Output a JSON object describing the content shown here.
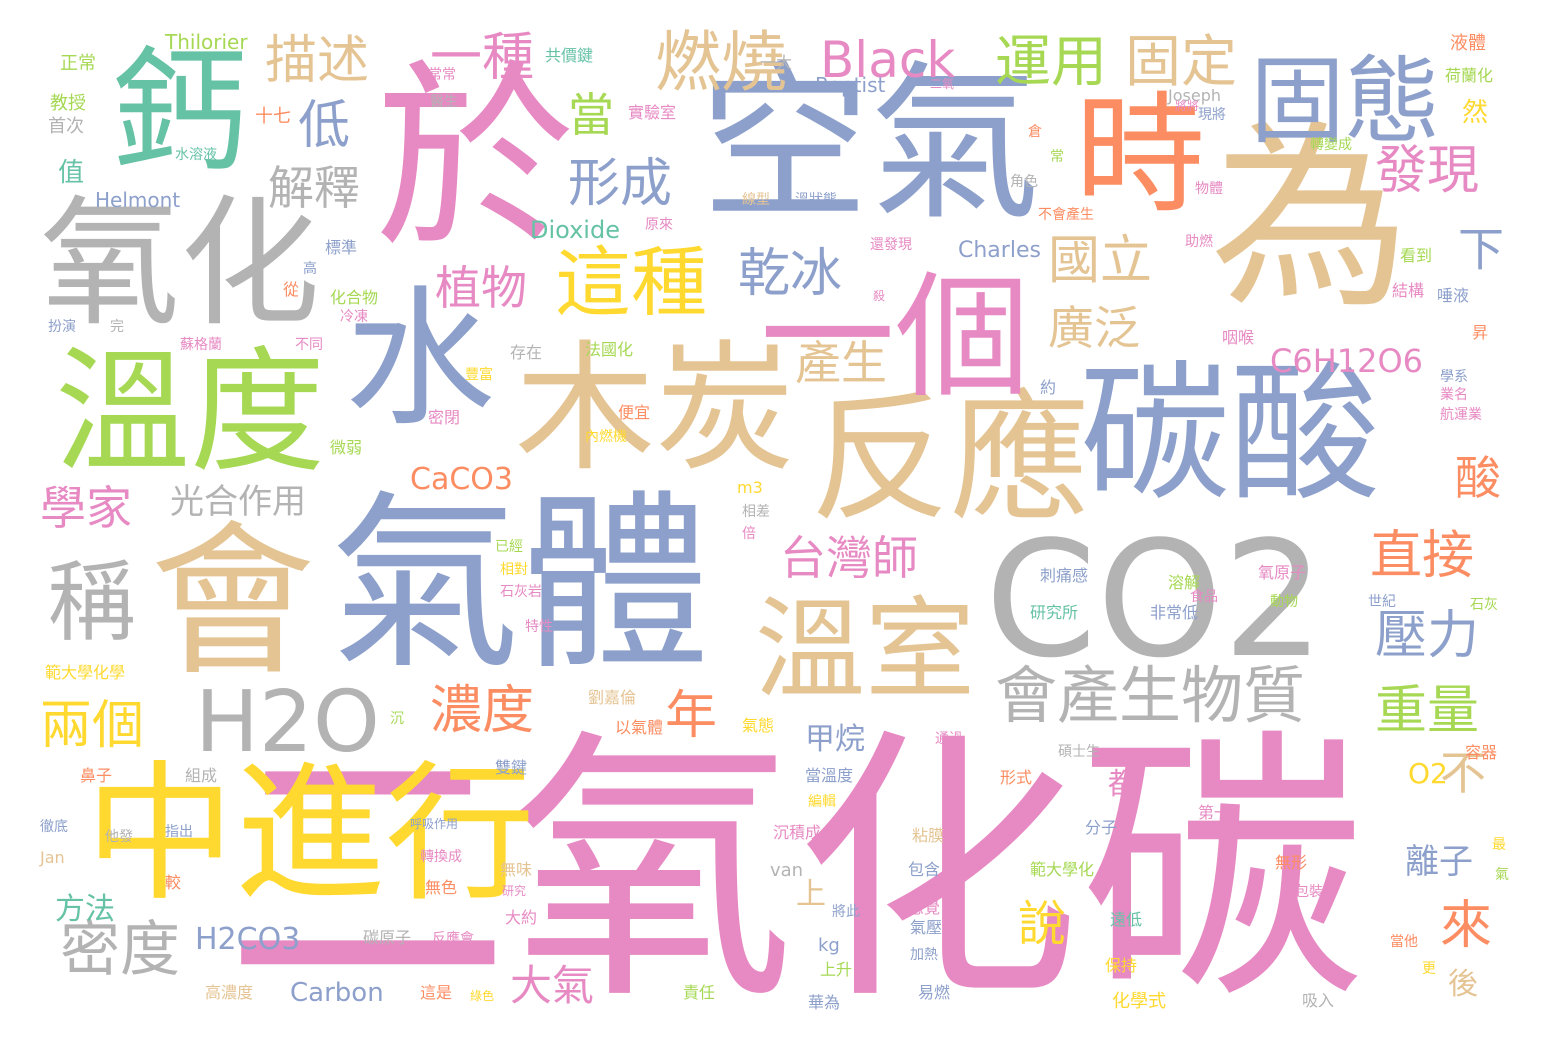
{
  "colors": {
    "pink": "#e78ac3",
    "blue": "#8da0cb",
    "tan": "#e5c494",
    "gray": "#b3b3b3",
    "green": "#a6d854",
    "yellow": "#ffd92f",
    "orange": "#fc8d62",
    "teal": "#66c2a5"
  },
  "words": [
    {
      "text": "二氧化碳",
      "color": "pink"
    },
    {
      "text": "空氣",
      "color": "blue"
    },
    {
      "text": "於",
      "color": "pink"
    },
    {
      "text": "為",
      "color": "tan"
    },
    {
      "text": "氣體",
      "color": "blue"
    },
    {
      "text": "CO2",
      "color": "gray"
    },
    {
      "text": "碳酸",
      "color": "blue"
    },
    {
      "text": "反應",
      "color": "tan"
    },
    {
      "text": "會",
      "color": "tan"
    },
    {
      "text": "木炭",
      "color": "tan"
    },
    {
      "text": "中進行",
      "color": "yellow"
    },
    {
      "text": "氧化",
      "color": "gray"
    },
    {
      "text": "溫度",
      "color": "green"
    },
    {
      "text": "一個",
      "color": "pink"
    },
    {
      "text": "鈣",
      "color": "teal"
    },
    {
      "text": "時",
      "color": "orange"
    },
    {
      "text": "固態",
      "color": "blue"
    },
    {
      "text": "水",
      "color": "blue"
    },
    {
      "text": "溫室",
      "color": "tan"
    },
    {
      "text": "H2O",
      "color": "gray"
    },
    {
      "text": "會產生物質",
      "color": "gray"
    },
    {
      "text": "這種",
      "color": "yellow"
    },
    {
      "text": "燃燒",
      "color": "tan"
    },
    {
      "text": "Black",
      "color": "pink"
    },
    {
      "text": "運用",
      "color": "green"
    },
    {
      "text": "固定",
      "color": "tan"
    },
    {
      "text": "描述",
      "color": "tan"
    },
    {
      "text": "一種",
      "color": "pink"
    },
    {
      "text": "發現",
      "color": "pink"
    },
    {
      "text": "形成",
      "color": "blue"
    },
    {
      "text": "乾冰",
      "color": "blue"
    },
    {
      "text": "國立",
      "color": "tan"
    },
    {
      "text": "廣泛",
      "color": "tan"
    },
    {
      "text": "解釋",
      "color": "gray"
    },
    {
      "text": "植物",
      "color": "pink"
    },
    {
      "text": "學家",
      "color": "pink"
    },
    {
      "text": "光合作用",
      "color": "gray"
    },
    {
      "text": "台灣師",
      "color": "pink"
    },
    {
      "text": "直接",
      "color": "orange"
    },
    {
      "text": "壓力",
      "color": "blue"
    },
    {
      "text": "產生",
      "color": "tan"
    },
    {
      "text": "C6H12O6",
      "color": "pink"
    },
    {
      "text": "酸",
      "color": "orange"
    },
    {
      "text": "CaCO3",
      "color": "orange"
    },
    {
      "text": "兩個",
      "color": "yellow"
    },
    {
      "text": "濃度",
      "color": "orange"
    },
    {
      "text": "年",
      "color": "orange"
    },
    {
      "text": "重量",
      "color": "green"
    },
    {
      "text": "不",
      "color": "tan"
    },
    {
      "text": "O2",
      "color": "yellow"
    },
    {
      "text": "密度",
      "color": "gray"
    },
    {
      "text": "方法",
      "color": "teal"
    },
    {
      "text": "H2CO3",
      "color": "blue"
    },
    {
      "text": "大氣",
      "color": "pink"
    },
    {
      "text": "說",
      "color": "yellow"
    },
    {
      "text": "來",
      "color": "orange"
    },
    {
      "text": "離子",
      "color": "blue"
    },
    {
      "text": "甲烷",
      "color": "blue"
    },
    {
      "text": "Carbon",
      "color": "blue"
    },
    {
      "text": "Dioxide",
      "color": "teal"
    },
    {
      "text": "Charles",
      "color": "blue"
    },
    {
      "text": "Thilorier",
      "color": "green"
    },
    {
      "text": "Baptist",
      "color": "blue"
    },
    {
      "text": "Helmont",
      "color": "blue"
    },
    {
      "text": "Joseph",
      "color": "gray"
    },
    {
      "text": "Jan",
      "color": "tan"
    },
    {
      "text": "van",
      "color": "gray"
    },
    {
      "text": "kg",
      "color": "blue"
    },
    {
      "text": "m3",
      "color": "yellow"
    },
    {
      "text": "稱",
      "color": "gray"
    },
    {
      "text": "下",
      "color": "blue"
    },
    {
      "text": "當",
      "color": "green"
    },
    {
      "text": "低",
      "color": "blue"
    },
    {
      "text": "然",
      "color": "yellow"
    },
    {
      "text": "上",
      "color": "tan"
    },
    {
      "text": "都",
      "color": "pink"
    },
    {
      "text": "後",
      "color": "tan"
    },
    {
      "text": "正常",
      "color": "green"
    },
    {
      "text": "教授",
      "color": "green"
    },
    {
      "text": "首次",
      "color": "gray"
    },
    {
      "text": "十七",
      "color": "orange"
    },
    {
      "text": "值",
      "color": "teal"
    },
    {
      "text": "水溶液",
      "color": "teal"
    },
    {
      "text": "共價鍵",
      "color": "teal"
    },
    {
      "text": "常常",
      "color": "pink"
    },
    {
      "text": "醫生",
      "color": "gray"
    },
    {
      "text": "一大",
      "color": "gray"
    },
    {
      "text": "實驗室",
      "color": "pink"
    },
    {
      "text": "液體",
      "color": "orange"
    },
    {
      "text": "荷蘭化",
      "color": "green"
    },
    {
      "text": "現將",
      "color": "blue"
    },
    {
      "text": "轉變成",
      "color": "green"
    },
    {
      "text": "物體",
      "color": "pink"
    },
    {
      "text": "助燃",
      "color": "pink"
    },
    {
      "text": "看到",
      "color": "green"
    },
    {
      "text": "結構",
      "color": "pink"
    },
    {
      "text": "唾液",
      "color": "blue"
    },
    {
      "text": "咽喉",
      "color": "pink"
    },
    {
      "text": "昇",
      "color": "orange"
    },
    {
      "text": "學系",
      "color": "blue"
    },
    {
      "text": "業名",
      "color": "pink"
    },
    {
      "text": "航運業",
      "color": "pink"
    },
    {
      "text": "倉",
      "color": "orange"
    },
    {
      "text": "常",
      "color": "green"
    },
    {
      "text": "角色",
      "color": "gray"
    },
    {
      "text": "不會產生",
      "color": "orange"
    },
    {
      "text": "線型",
      "color": "tan"
    },
    {
      "text": "溫狀態",
      "color": "blue"
    },
    {
      "text": "還發現",
      "color": "pink"
    },
    {
      "text": "原來",
      "color": "pink"
    },
    {
      "text": "標準",
      "color": "blue"
    },
    {
      "text": "高",
      "color": "blue"
    },
    {
      "text": "從",
      "color": "orange"
    },
    {
      "text": "化合物",
      "color": "green"
    },
    {
      "text": "冷凍",
      "color": "pink"
    },
    {
      "text": "扮演",
      "color": "blue"
    },
    {
      "text": "完",
      "color": "gray"
    },
    {
      "text": "蘇格蘭",
      "color": "pink"
    },
    {
      "text": "不同",
      "color": "pink"
    },
    {
      "text": "存在",
      "color": "gray"
    },
    {
      "text": "法國化",
      "color": "green"
    },
    {
      "text": "約",
      "color": "blue"
    },
    {
      "text": "豐富",
      "color": "yellow"
    },
    {
      "text": "便宜",
      "color": "orange"
    },
    {
      "text": "密閉",
      "color": "pink"
    },
    {
      "text": "微弱",
      "color": "green"
    },
    {
      "text": "內燃機",
      "color": "yellow"
    },
    {
      "text": "相差",
      "color": "gray"
    },
    {
      "text": "倍",
      "color": "pink"
    },
    {
      "text": "已經",
      "color": "green"
    },
    {
      "text": "相對",
      "color": "yellow"
    },
    {
      "text": "石灰岩",
      "color": "pink"
    },
    {
      "text": "特性",
      "color": "pink"
    },
    {
      "text": "刺痛感",
      "color": "blue"
    },
    {
      "text": "溶解",
      "color": "green"
    },
    {
      "text": "氧原子",
      "color": "pink"
    },
    {
      "text": "研究所",
      "color": "teal"
    },
    {
      "text": "非常低",
      "color": "blue"
    },
    {
      "text": "食品",
      "color": "pink"
    },
    {
      "text": "動物",
      "color": "green"
    },
    {
      "text": "世紀",
      "color": "blue"
    },
    {
      "text": "石灰",
      "color": "green"
    },
    {
      "text": "範大學化學",
      "color": "yellow"
    },
    {
      "text": "劉嘉倫",
      "color": "tan"
    },
    {
      "text": "以氣體",
      "color": "orange"
    },
    {
      "text": "氣態",
      "color": "yellow"
    },
    {
      "text": "通過",
      "color": "pink"
    },
    {
      "text": "碩士生",
      "color": "gray"
    },
    {
      "text": "容器",
      "color": "orange"
    },
    {
      "text": "沉",
      "color": "green"
    },
    {
      "text": "鼻子",
      "color": "orange"
    },
    {
      "text": "組成",
      "color": "gray"
    },
    {
      "text": "雙鍵",
      "color": "blue"
    },
    {
      "text": "當溫度",
      "color": "blue"
    },
    {
      "text": "編輯",
      "color": "yellow"
    },
    {
      "text": "形式",
      "color": "orange"
    },
    {
      "text": "徹底",
      "color": "blue"
    },
    {
      "text": "他發",
      "color": "gray"
    },
    {
      "text": "指出",
      "color": "blue"
    },
    {
      "text": "呼吸作用",
      "color": "blue"
    },
    {
      "text": "沉積成",
      "color": "pink"
    },
    {
      "text": "粘膜",
      "color": "tan"
    },
    {
      "text": "分子",
      "color": "blue"
    },
    {
      "text": "第一",
      "color": "pink"
    },
    {
      "text": "最",
      "color": "yellow"
    },
    {
      "text": "氣",
      "color": "green"
    },
    {
      "text": "轉換成",
      "color": "pink"
    },
    {
      "text": "無味",
      "color": "tan"
    },
    {
      "text": "無色",
      "color": "orange"
    },
    {
      "text": "研究",
      "color": "pink"
    },
    {
      "text": "較",
      "color": "orange"
    },
    {
      "text": "包含",
      "color": "blue"
    },
    {
      "text": "範大學化",
      "color": "green"
    },
    {
      "text": "無形",
      "color": "orange"
    },
    {
      "text": "包裝",
      "color": "pink"
    },
    {
      "text": "遠低",
      "color": "teal"
    },
    {
      "text": "當他",
      "color": "orange"
    },
    {
      "text": "更",
      "color": "yellow"
    },
    {
      "text": "感覺",
      "color": "pink"
    },
    {
      "text": "將此",
      "color": "blue"
    },
    {
      "text": "大約",
      "color": "pink"
    },
    {
      "text": "碳原子",
      "color": "gray"
    },
    {
      "text": "反應會",
      "color": "pink"
    },
    {
      "text": "氣壓",
      "color": "blue"
    },
    {
      "text": "加熱",
      "color": "blue"
    },
    {
      "text": "保持",
      "color": "yellow"
    },
    {
      "text": "上升",
      "color": "green"
    },
    {
      "text": "高濃度",
      "color": "tan"
    },
    {
      "text": "這是",
      "color": "orange"
    },
    {
      "text": "綠色",
      "color": "yellow"
    },
    {
      "text": "責任",
      "color": "green"
    },
    {
      "text": "華為",
      "color": "blue"
    },
    {
      "text": "易燃",
      "color": "blue"
    },
    {
      "text": "化學式",
      "color": "yellow"
    },
    {
      "text": "吸入",
      "color": "gray"
    },
    {
      "text": "二氧",
      "color": "pink"
    },
    {
      "text": "殺",
      "color": "pink"
    },
    {
      "text": "將將",
      "color": "pink"
    }
  ]
}
